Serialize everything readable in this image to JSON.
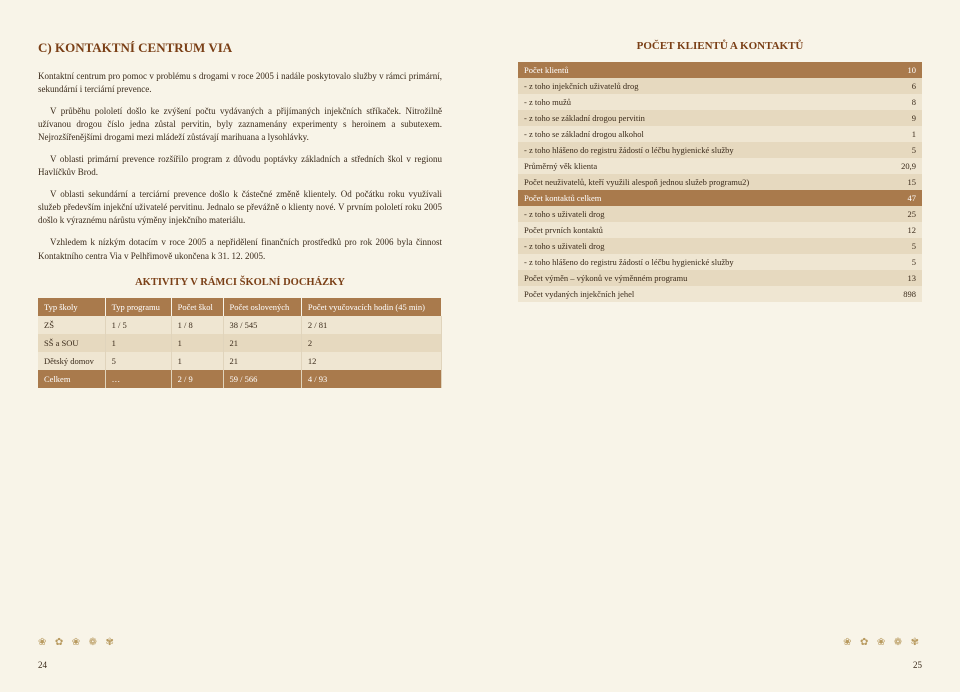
{
  "left": {
    "title": "C) KONTAKTNÍ CENTRUM VIA",
    "para1": "Kontaktní centrum pro pomoc v problému s drogami v roce 2005 i nadále poskytovalo služby v rámci primární, sekundární i terciární prevence.",
    "para2": "V průběhu pololetí došlo ke zvýšení počtu vydávaných a přijímaných injekčních stříkaček. Nitrožilně užívanou drogou číslo jedna zůstal pervitin, byly zaznamenány experimenty s heroinem a subutexem. Nejrozšířenějšími drogami mezi mládeží zůstávají marihuana a lysohlávky.",
    "para3": "V oblasti primární prevence rozšířilo program z důvodu poptávky základních a středních škol v regionu Havlíčkův Brod.",
    "para4": "V oblasti sekundární a terciární prevence došlo k částečné změně klientely. Od počátku roku využívali služeb především injekční uživatelé pervitinu. Jednalo se převážně o klienty nové. V prvním pololetí roku 2005 došlo k výraznému nárůstu výměny injekčního materiálu.",
    "para5": "Vzhledem k nízkým dotacím v roce 2005 a nepřidělení finančních prostředků pro rok 2006 byla činnost Kontaktního centra Via v Pelhřimově ukončena k 31. 12. 2005.",
    "subheader": "AKTIVITY V RÁMCI ŠKOLNÍ DOCHÁZKY",
    "activity": {
      "headers": [
        "Typ školy",
        "Typ programu",
        "Počet škol",
        "Počet oslovených",
        "Počet vyučovacích hodin (45 min)"
      ],
      "rows": [
        [
          "ZŠ",
          "1 / 5",
          "1 / 8",
          "38 / 545",
          "2 / 81"
        ],
        [
          "SŠ a SOU",
          "1",
          "1",
          "21",
          "2"
        ],
        [
          "Dětský domov",
          "5",
          "1",
          "21",
          "12"
        ],
        [
          "Celkem",
          "…",
          "2 / 9",
          "59 / 566",
          "4 / 93"
        ]
      ]
    },
    "pagenum": "24"
  },
  "right": {
    "subheader": "POČET KLIENTŮ A KONTAKTŮ",
    "clients": [
      {
        "label": "Počet klientů",
        "val": "10",
        "cls": "brown"
      },
      {
        "label": "- z toho injekčních uživatelů drog",
        "val": "6",
        "cls": "beige"
      },
      {
        "label": "- z toho mužů",
        "val": "8",
        "cls": "light"
      },
      {
        "label": "- z toho se základní drogou pervitin",
        "val": "9",
        "cls": "beige"
      },
      {
        "label": "- z toho se základní drogou alkohol",
        "val": "1",
        "cls": "light"
      },
      {
        "label": "- z toho hlášeno do registru žádostí o léčbu hygienické služby",
        "val": "5",
        "cls": "beige"
      },
      {
        "label": "Průměrný věk klienta",
        "val": "20,9",
        "cls": "light"
      },
      {
        "label": "Počet neuživatelů, kteří využili alespoň jednou služeb programu2)",
        "val": "15",
        "cls": "beige"
      },
      {
        "label": "Počet kontaktů celkem",
        "val": "47",
        "cls": "brown"
      },
      {
        "label": "- z toho s uživateli drog",
        "val": "25",
        "cls": "beige"
      },
      {
        "label": "Počet prvních kontaktů",
        "val": "12",
        "cls": "light"
      },
      {
        "label": "- z toho s uživateli drog",
        "val": "5",
        "cls": "beige"
      },
      {
        "label": "- z toho hlášeno do registru žádostí o léčbu hygienické služby",
        "val": "5",
        "cls": "light"
      },
      {
        "label": "Počet výměn – výkonů ve výměnném programu",
        "val": "13",
        "cls": "beige"
      },
      {
        "label": "Počet vydaných injekčních jehel",
        "val": "898",
        "cls": "light"
      }
    ],
    "pagenum": "25"
  },
  "decoration": "❀ ✿ ❀ ❁ ✾"
}
